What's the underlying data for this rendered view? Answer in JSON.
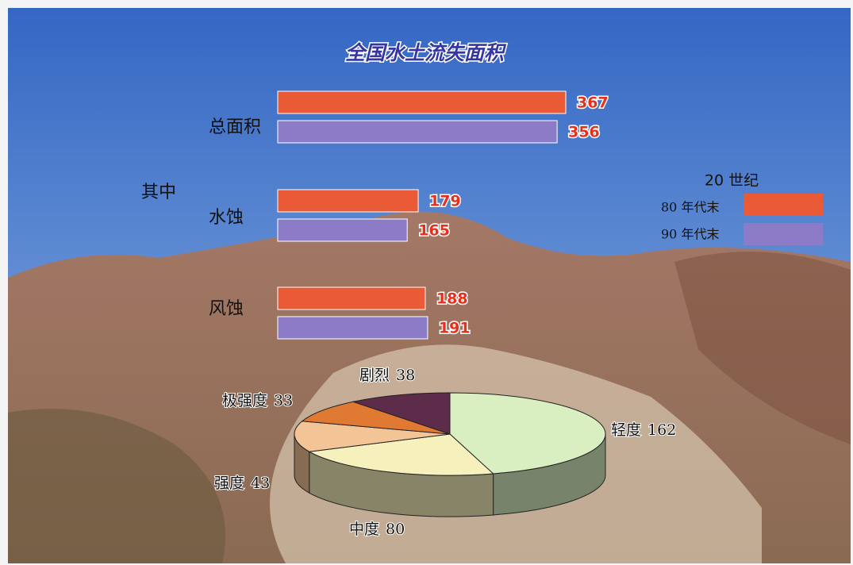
{
  "chart_data": [
    {
      "type": "bar",
      "orientation": "horizontal",
      "title": "全国水土流失面积",
      "note": "其中",
      "categories": [
        "总面积",
        "水蚀",
        "风蚀"
      ],
      "legend_title": "20 世纪",
      "series": [
        {
          "name": "80 年代末",
          "color": "#ea5a36",
          "values": [
            367,
            179,
            188
          ]
        },
        {
          "name": "90 年代末",
          "color": "#8c7cc8",
          "values": [
            356,
            165,
            191
          ]
        }
      ]
    },
    {
      "type": "pie",
      "three_d": true,
      "categories": [
        "轻度",
        "中度",
        "强度",
        "极强度",
        "剧烈"
      ],
      "values": [
        162,
        80,
        43,
        33,
        38
      ],
      "colors": [
        "#d9efc2",
        "#f5f0bc",
        "#f2c496",
        "#e07a32",
        "#5c2c4a"
      ]
    }
  ]
}
